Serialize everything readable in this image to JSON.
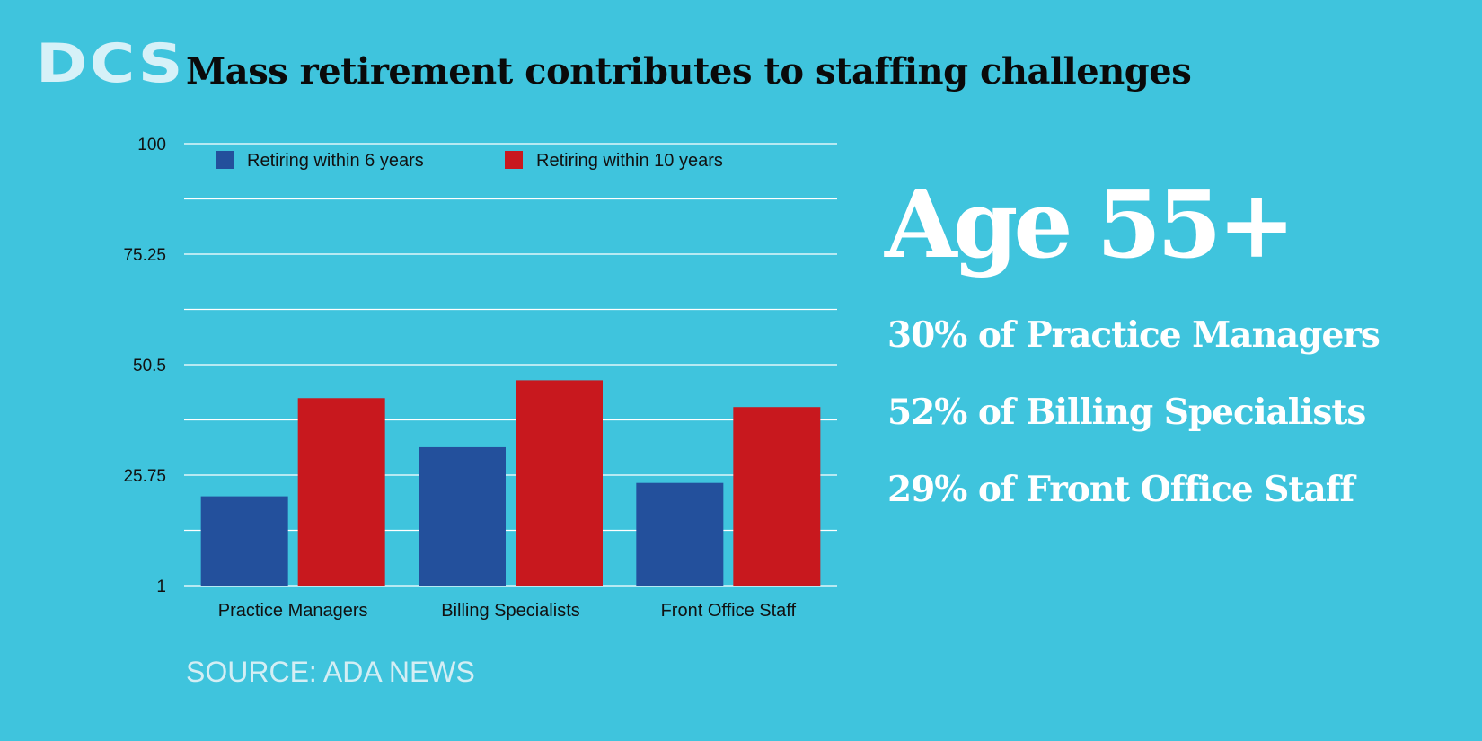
{
  "logo": "DCS",
  "title": "Mass retirement contributes to staffing challenges",
  "colors": {
    "background": "#3fc4dd",
    "series_6yr": "#23509c",
    "series_10yr": "#c8181e"
  },
  "chart_data": {
    "type": "bar",
    "categories": [
      "Practice Managers",
      "Billing Specialists",
      "Front Office Staff"
    ],
    "series": [
      {
        "name": "Retiring within 6 years",
        "values": [
          21,
          32,
          24
        ],
        "color": "#23509c"
      },
      {
        "name": "Retiring within 10 years",
        "values": [
          43,
          47,
          41
        ],
        "color": "#c8181e"
      }
    ],
    "ylim": [
      1,
      100
    ],
    "yticks": [
      "1",
      "25.75",
      "50.5",
      "75.25",
      "100"
    ],
    "grid": true,
    "legend": "top"
  },
  "highlight": {
    "headline": "Age 55+",
    "stats": [
      "30% of Practice Managers",
      "52% of Billing Specialists",
      "29% of Front Office Staff"
    ]
  },
  "source": "SOURCE: ADA NEWS"
}
